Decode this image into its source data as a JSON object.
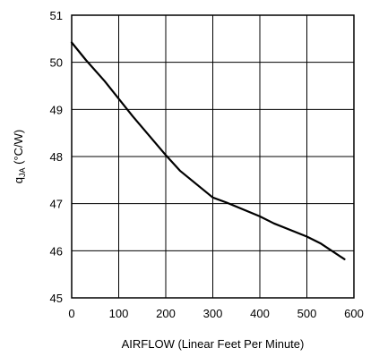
{
  "chart_data": {
    "type": "line",
    "xlabel": "AIRFLOW (Linear Feet Per Minute)",
    "ylabel": {
      "q": "q",
      "sub": "JA",
      "rest": " (°C/W)"
    },
    "xlim": [
      0,
      600
    ],
    "ylim": [
      45,
      51
    ],
    "xticks": [
      0,
      100,
      200,
      300,
      400,
      500,
      600
    ],
    "yticks": [
      45,
      46,
      47,
      48,
      49,
      50,
      51
    ],
    "grid": true,
    "series": [
      {
        "x": [
          0,
          30,
          70,
          130,
          200,
          230,
          300,
          330,
          400,
          430,
          500,
          530,
          580
        ],
        "y": [
          50.42,
          50.05,
          49.6,
          48.85,
          48.03,
          47.7,
          47.13,
          47.02,
          46.73,
          46.58,
          46.3,
          46.15,
          45.82
        ]
      }
    ]
  }
}
